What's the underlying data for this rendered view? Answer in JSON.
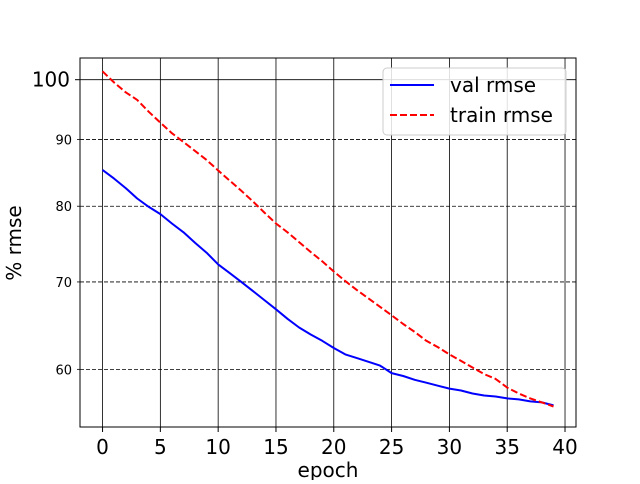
{
  "chart_data": {
    "type": "line",
    "title": "",
    "xlabel": "epoch",
    "ylabel": "% rmse",
    "xlim": [
      -1.95,
      40.95
    ],
    "ylim": [
      54.2,
      103.9
    ],
    "y_scale": "log",
    "x_ticks": [
      0,
      5,
      10,
      15,
      20,
      25,
      30,
      35,
      40
    ],
    "y_major_ticks": [
      100
    ],
    "y_minor_ticks": [
      60,
      70,
      80,
      90
    ],
    "grid": true,
    "legend_position": "upper right",
    "series": [
      {
        "name": "val rmse",
        "color": "#0000ff",
        "dash": "solid",
        "x": [
          0,
          1,
          2,
          3,
          4,
          5,
          6,
          7,
          8,
          9,
          10,
          11,
          12,
          13,
          14,
          15,
          16,
          17,
          18,
          19,
          20,
          21,
          22,
          23,
          24,
          25,
          26,
          27,
          28,
          29,
          30,
          31,
          32,
          33,
          34,
          35,
          36,
          37,
          38,
          39
        ],
        "y": [
          85.3,
          84.0,
          82.6,
          81.1,
          79.9,
          78.9,
          77.6,
          76.4,
          75.0,
          73.7,
          72.2,
          71.1,
          70.0,
          68.9,
          67.8,
          66.7,
          65.6,
          64.6,
          63.8,
          63.1,
          62.3,
          61.6,
          61.2,
          60.8,
          60.4,
          59.6,
          59.3,
          58.9,
          58.6,
          58.3,
          58.0,
          57.8,
          57.5,
          57.3,
          57.2,
          57.0,
          56.9,
          56.7,
          56.6,
          56.3
        ]
      },
      {
        "name": "train rmse",
        "color": "#ff0000",
        "dash": "dashed",
        "x": [
          0,
          1,
          2,
          3,
          4,
          5,
          6,
          7,
          8,
          9,
          10,
          11,
          12,
          13,
          14,
          15,
          16,
          17,
          18,
          19,
          20,
          21,
          22,
          23,
          24,
          25,
          26,
          27,
          28,
          29,
          30,
          31,
          32,
          33,
          34,
          35,
          36,
          37,
          38,
          39
        ],
        "y": [
          101.5,
          99.5,
          97.8,
          96.5,
          94.5,
          92.7,
          91.0,
          89.6,
          88.2,
          86.8,
          85.2,
          83.7,
          82.2,
          80.7,
          79.1,
          77.6,
          76.4,
          75.1,
          73.8,
          72.6,
          71.3,
          70.1,
          69.0,
          68.0,
          67.0,
          66.0,
          65.0,
          64.1,
          63.1,
          62.4,
          61.6,
          60.9,
          60.2,
          59.5,
          59.0,
          58.1,
          57.5,
          57.0,
          56.6,
          56.2
        ]
      }
    ]
  }
}
